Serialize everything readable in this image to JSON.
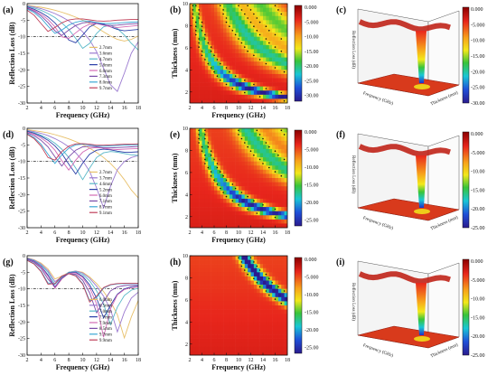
{
  "panel_labels": [
    "(a)",
    "(b)",
    "(c)",
    "(d)",
    "(e)",
    "(f)",
    "(g)",
    "(h)",
    "(i)"
  ],
  "chart_data": [
    {
      "panel": "a",
      "type": "line",
      "xlabel": "Frequency (GHz)",
      "ylabel": "Reflection Loss (dB)",
      "xlim": [
        2,
        18
      ],
      "ylim": [
        -30,
        0
      ],
      "xticks": [
        2,
        4,
        6,
        8,
        10,
        12,
        14,
        16,
        18
      ],
      "yticks": [
        0,
        -5,
        -10,
        -15,
        -20,
        -25,
        -30
      ],
      "reference_line": -10,
      "x": [
        2,
        3,
        4,
        5,
        6,
        7,
        8,
        9,
        10,
        11,
        12,
        13,
        14,
        15,
        16,
        17,
        18
      ],
      "series": [
        {
          "name": "2.7mm",
          "color": "#e8c06a",
          "values": [
            -0.5,
            -0.8,
            -1.1,
            -1.5,
            -2.0,
            -2.6,
            -3.3,
            -4.1,
            -5.0,
            -6.0,
            -7.2,
            -8.5,
            -9.8,
            -10.8,
            -11.3,
            -10.8,
            -9.8
          ]
        },
        {
          "name": "3.6mm",
          "color": "#9b7ad0",
          "values": [
            -0.6,
            -1.0,
            -1.5,
            -2.2,
            -3.0,
            -4.0,
            -5.2,
            -6.7,
            -8.5,
            -11.0,
            -14.5,
            -19.5,
            -24.5,
            -26.5,
            -21.0,
            -15.0,
            -11.5
          ]
        },
        {
          "name": "4.7mm",
          "color": "#59b8c8",
          "values": [
            -0.8,
            -1.3,
            -2.0,
            -3.0,
            -4.2,
            -5.8,
            -7.8,
            -10.5,
            -13.5,
            -12.0,
            -9.0,
            -7.0,
            -6.5,
            -7.5,
            -9.5,
            -12.0,
            -14.0
          ]
        },
        {
          "name": "5.8mm",
          "color": "#2a3fa8",
          "values": [
            -1.0,
            -1.7,
            -2.7,
            -4.0,
            -5.8,
            -8.2,
            -11.0,
            -11.8,
            -9.5,
            -7.0,
            -6.0,
            -6.2,
            -7.0,
            -7.8,
            -8.2,
            -8.0,
            -7.8
          ]
        },
        {
          "name": "6.6mm",
          "color": "#d36ab5",
          "values": [
            -1.2,
            -2.0,
            -3.2,
            -4.8,
            -7.0,
            -10.0,
            -10.5,
            -8.8,
            -7.2,
            -6.2,
            -6.0,
            -6.5,
            -7.0,
            -7.2,
            -7.0,
            -6.8,
            -6.6
          ]
        },
        {
          "name": "7.3mm",
          "color": "#7a4ba8",
          "values": [
            -1.4,
            -2.3,
            -3.7,
            -5.7,
            -8.2,
            -9.6,
            -8.0,
            -6.6,
            -5.8,
            -5.6,
            -5.9,
            -6.4,
            -6.6,
            -6.5,
            -6.3,
            -6.1,
            -6.0
          ]
        },
        {
          "name": "8.0mm",
          "color": "#3aa7d4",
          "values": [
            -1.6,
            -2.7,
            -4.4,
            -6.8,
            -9.0,
            -8.0,
            -6.5,
            -5.6,
            -5.2,
            -5.3,
            -5.7,
            -6.0,
            -6.0,
            -5.9,
            -5.7,
            -5.6,
            -5.5
          ]
        },
        {
          "name": "9.7mm",
          "color": "#c0405a",
          "values": [
            -2.0,
            -3.5,
            -6.0,
            -8.4,
            -7.2,
            -5.8,
            -4.9,
            -4.6,
            -4.6,
            -4.9,
            -5.2,
            -5.3,
            -5.2,
            -5.0,
            -4.9,
            -4.8,
            -4.8
          ]
        }
      ]
    },
    {
      "panel": "b",
      "type": "heatmap",
      "xlabel": "Frequency (GHz)",
      "ylabel": "Thickness (mm)",
      "xlim": [
        2,
        18
      ],
      "ylim": [
        1,
        10
      ],
      "xticks": [
        2,
        4,
        6,
        8,
        10,
        12,
        14,
        16,
        18
      ],
      "yticks": [
        2,
        4,
        6,
        8,
        10
      ],
      "colorbar_ticks": [
        "0.000",
        "-5.000",
        "-10.00",
        "-15.00",
        "-20.00",
        "-25.00",
        "-30.00"
      ],
      "value_range": [
        -32,
        0
      ],
      "band_product": 27,
      "band_depth": 32,
      "band_width": 5.5,
      "band_contour": -10
    },
    {
      "panel": "c",
      "type": "surface",
      "axis_labels": [
        "Frequency (GHz)",
        "Thickness (mm)",
        "Reflection Loss (dB)"
      ],
      "colorbar_ticks": [
        "0.000",
        "-5.000",
        "-10.00",
        "-15.00",
        "-20.00",
        "-25.00",
        "-30.00"
      ]
    },
    {
      "panel": "d",
      "type": "line",
      "xlabel": "Frequency (GHz)",
      "ylabel": "Reflection Loss (dB)",
      "xlim": [
        2,
        18
      ],
      "ylim": [
        -30,
        0
      ],
      "xticks": [
        2,
        4,
        6,
        8,
        10,
        12,
        14,
        16,
        18
      ],
      "yticks": [
        0,
        -5,
        -10,
        -15,
        -20,
        -25,
        -30
      ],
      "reference_line": -10,
      "x": [
        2,
        3,
        4,
        5,
        6,
        7,
        8,
        9,
        10,
        11,
        12,
        13,
        14,
        15,
        16,
        17,
        18
      ],
      "series": [
        {
          "name": "2.7mm",
          "color": "#e8c06a",
          "values": [
            -0.4,
            -0.7,
            -1.0,
            -1.4,
            -1.9,
            -2.5,
            -3.2,
            -4.0,
            -4.9,
            -6.0,
            -7.3,
            -8.8,
            -10.6,
            -12.8,
            -15.5,
            -18.6,
            -21.0
          ]
        },
        {
          "name": "3.7mm",
          "color": "#9b7ad0",
          "values": [
            -0.6,
            -1.0,
            -1.5,
            -2.2,
            -3.1,
            -4.2,
            -5.6,
            -7.4,
            -9.8,
            -13.0,
            -18.0,
            -24.0,
            -17.5,
            -12.5,
            -10.0,
            -8.8,
            -8.2
          ]
        },
        {
          "name": "4.6mm",
          "color": "#59b8c8",
          "values": [
            -0.8,
            -1.3,
            -2.1,
            -3.1,
            -4.5,
            -6.3,
            -8.8,
            -12.0,
            -15.5,
            -12.0,
            -8.8,
            -7.4,
            -7.0,
            -7.2,
            -7.6,
            -8.0,
            -8.2
          ]
        },
        {
          "name": "5.2mm",
          "color": "#2a3fa8",
          "values": [
            -0.9,
            -1.5,
            -2.4,
            -3.6,
            -5.3,
            -7.6,
            -10.8,
            -13.8,
            -10.5,
            -7.8,
            -6.6,
            -6.3,
            -6.5,
            -6.9,
            -7.2,
            -7.2,
            -7.1
          ]
        },
        {
          "name": "6.0mm",
          "color": "#d36ab5",
          "values": [
            -1.1,
            -1.8,
            -2.9,
            -4.4,
            -6.6,
            -9.8,
            -12.6,
            -9.6,
            -7.2,
            -6.0,
            -5.8,
            -6.0,
            -6.3,
            -6.4,
            -6.3,
            -6.2,
            -6.1
          ]
        },
        {
          "name": "7.1mm",
          "color": "#7a4ba8",
          "values": [
            -1.3,
            -2.2,
            -3.6,
            -5.6,
            -8.6,
            -11.4,
            -8.6,
            -6.6,
            -5.6,
            -5.4,
            -5.6,
            -5.9,
            -5.9,
            -5.8,
            -5.7,
            -5.6,
            -5.5
          ]
        },
        {
          "name": "8.7mm",
          "color": "#3aa7d4",
          "values": [
            -1.6,
            -2.8,
            -4.8,
            -7.8,
            -10.6,
            -8.0,
            -6.0,
            -5.0,
            -4.8,
            -5.0,
            -5.3,
            -5.4,
            -5.3,
            -5.2,
            -5.1,
            -5.0,
            -5.0
          ]
        },
        {
          "name": "9.1mm",
          "color": "#c0405a",
          "values": [
            -1.8,
            -3.1,
            -5.4,
            -8.8,
            -9.6,
            -7.0,
            -5.4,
            -4.7,
            -4.6,
            -4.8,
            -5.1,
            -5.1,
            -5.0,
            -4.9,
            -4.8,
            -4.8,
            -4.7
          ]
        }
      ]
    },
    {
      "panel": "e",
      "type": "heatmap",
      "xlabel": "Frequency (GHz)",
      "ylabel": "Thickness (mm)",
      "xlim": [
        2,
        18
      ],
      "ylim": [
        1,
        10
      ],
      "xticks": [
        2,
        4,
        6,
        8,
        10,
        12,
        14,
        16,
        18
      ],
      "yticks": [
        2,
        4,
        6,
        8,
        10
      ],
      "colorbar_ticks": [
        "0.000",
        "-5.000",
        "-10.00",
        "-15.00",
        "-20.00",
        "-25.00"
      ],
      "value_range": [
        -27,
        0
      ],
      "band_product": 37,
      "band_depth": 26,
      "band_width": 6.5,
      "band_contour": -10
    },
    {
      "panel": "f",
      "type": "surface",
      "axis_labels": [
        "Frequency (GHz)",
        "Thickness (mm)",
        "Reflection Loss (dB)"
      ],
      "colorbar_ticks": [
        "0.000",
        "-5.000",
        "-10.00",
        "-15.00",
        "-20.00",
        "-25.00"
      ]
    },
    {
      "panel": "g",
      "type": "line",
      "xlabel": "Frequency (GHz)",
      "ylabel": "Reflection Loss (dB)",
      "xlim": [
        2,
        18
      ],
      "ylim": [
        -30,
        0
      ],
      "xticks": [
        2,
        4,
        6,
        8,
        10,
        12,
        14,
        16,
        18
      ],
      "yticks": [
        0,
        -5,
        -10,
        -15,
        -20,
        -25,
        -30
      ],
      "reference_line": -10,
      "x": [
        2,
        3,
        4,
        5,
        6,
        7,
        8,
        9,
        10,
        11,
        12,
        13,
        14,
        15,
        16,
        17,
        18
      ],
      "series": [
        {
          "name": "6.0mm",
          "color": "#e8c06a",
          "values": [
            -0.6,
            -1.2,
            -2.2,
            -4.0,
            -7.0,
            -6.2,
            -5.0,
            -4.6,
            -5.0,
            -6.4,
            -8.4,
            -10.8,
            -13.8,
            -17.8,
            -24.8,
            -18.5,
            -13.5
          ]
        },
        {
          "name": "6.5mm",
          "color": "#9b7ad0",
          "values": [
            -0.7,
            -1.3,
            -2.5,
            -4.5,
            -7.8,
            -6.4,
            -5.0,
            -4.6,
            -5.2,
            -6.8,
            -9.2,
            -12.2,
            -16.2,
            -23.0,
            -17.0,
            -12.8,
            -11.0
          ]
        },
        {
          "name": "7.0mm",
          "color": "#59b8c8",
          "values": [
            -0.8,
            -1.5,
            -2.8,
            -5.0,
            -8.6,
            -6.6,
            -5.0,
            -4.8,
            -5.6,
            -7.6,
            -10.6,
            -14.6,
            -20.8,
            -15.5,
            -12.0,
            -10.4,
            -9.8
          ]
        },
        {
          "name": "7.7mm",
          "color": "#2a3fa8",
          "values": [
            -0.9,
            -1.7,
            -3.2,
            -5.8,
            -9.4,
            -6.8,
            -5.2,
            -5.0,
            -6.2,
            -8.8,
            -12.8,
            -18.8,
            -15.0,
            -11.6,
            -10.0,
            -9.4,
            -9.2
          ]
        },
        {
          "name": "7.9mm",
          "color": "#d36ab5",
          "values": [
            -1.0,
            -1.8,
            -3.4,
            -6.2,
            -9.8,
            -7.0,
            -5.3,
            -5.2,
            -6.6,
            -9.6,
            -14.5,
            -24.6,
            -16.0,
            -11.8,
            -10.2,
            -9.6,
            -9.4
          ]
        },
        {
          "name": "8.5mm",
          "color": "#7a4ba8",
          "values": [
            -1.1,
            -2.0,
            -3.8,
            -7.0,
            -9.4,
            -6.8,
            -5.4,
            -5.6,
            -7.4,
            -11.2,
            -17.2,
            -13.8,
            -10.6,
            -9.4,
            -9.0,
            -8.9,
            -8.8
          ]
        },
        {
          "name": "9.7mm",
          "color": "#3aa7d4",
          "values": [
            -1.3,
            -2.4,
            -4.6,
            -8.2,
            -8.6,
            -6.2,
            -5.4,
            -6.0,
            -8.4,
            -13.6,
            -12.6,
            -9.8,
            -8.8,
            -8.5,
            -8.4,
            -8.4,
            -8.4
          ]
        },
        {
          "name": "9.9mm",
          "color": "#c0405a",
          "values": [
            -1.4,
            -2.5,
            -4.8,
            -8.6,
            -8.4,
            -6.1,
            -5.4,
            -6.1,
            -8.6,
            -14.0,
            -12.2,
            -9.6,
            -8.7,
            -8.4,
            -8.3,
            -8.3,
            -8.3
          ]
        }
      ]
    },
    {
      "panel": "h",
      "type": "heatmap",
      "xlabel": "Frequency (GHz)",
      "ylabel": "Thickness (mm)",
      "xlim": [
        2,
        18
      ],
      "ylim": [
        1,
        10
      ],
      "xticks": [
        2,
        4,
        6,
        8,
        10,
        12,
        14,
        16,
        18
      ],
      "yticks": [
        2,
        4,
        6,
        8,
        10
      ],
      "colorbar_ticks": [
        "0.000",
        "-5.000",
        "-10.00",
        "-15.00",
        "-20.00",
        "-25.00"
      ],
      "value_range": [
        -26,
        0
      ],
      "band_product": 108,
      "band_depth": 26,
      "band_width": 10,
      "band_contour": -10
    },
    {
      "panel": "i",
      "type": "surface",
      "axis_labels": [
        "Frequency (GHz)",
        "Thickness (mm)",
        "Reflection Loss (dB)"
      ],
      "colorbar_ticks": [
        "0.000",
        "-5.000",
        "-10.00",
        "-15.00",
        "-20.00",
        "-25.00"
      ]
    }
  ],
  "colors": {
    "map_low": "#1e1e9e",
    "map_high": "#e8261c",
    "reference_line": "#000000",
    "surface_floor": "#d83a1c",
    "frame": "#111111"
  }
}
